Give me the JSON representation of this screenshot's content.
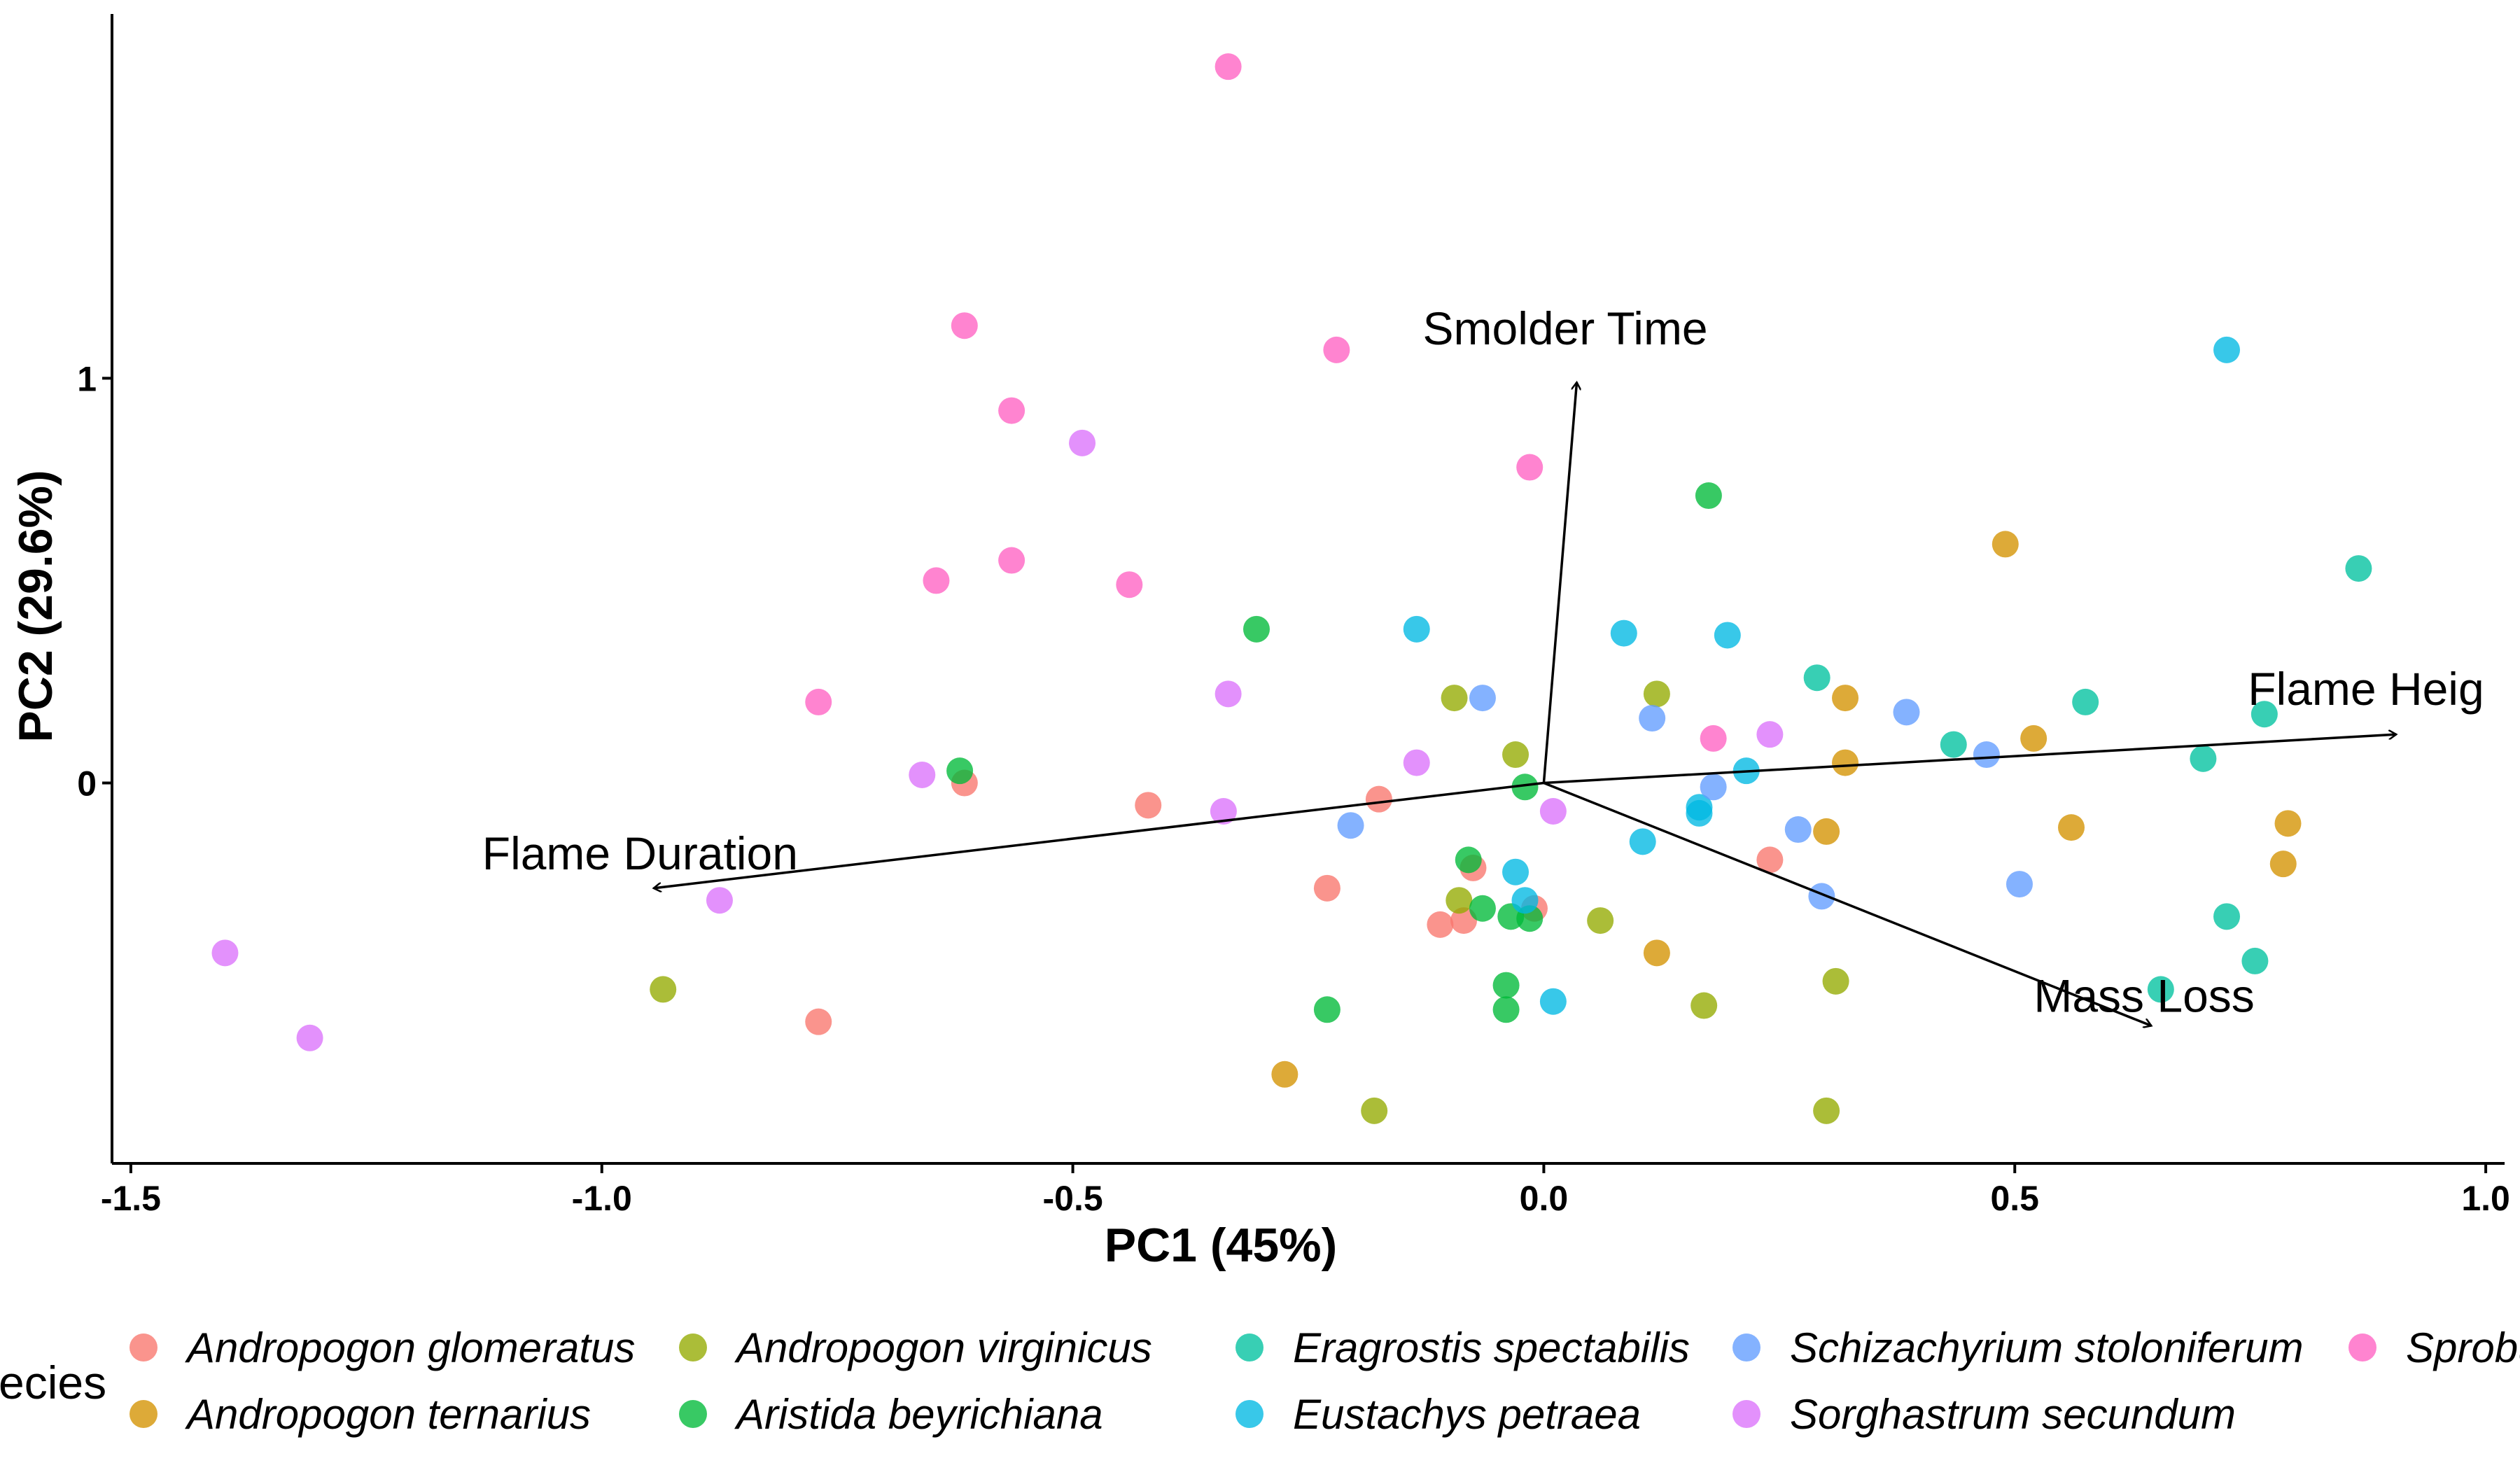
{
  "chart_data": {
    "type": "scatter",
    "title": "",
    "xlabel": "PC1 (45%)",
    "ylabel": "PC2 (29.6%)",
    "xlim": [
      -1.52,
      1.02
    ],
    "ylim": [
      -0.94,
      1.9
    ],
    "x_ticks": [
      "-1.5",
      "-1.0",
      "-0.5",
      "0.0",
      "0.5",
      "1.0"
    ],
    "x_tick_values": [
      -1.5,
      -1.0,
      -0.5,
      0.0,
      0.5,
      1.0
    ],
    "y_ticks": [
      "0",
      "1"
    ],
    "y_tick_values": [
      0,
      1
    ],
    "grid": false,
    "legend": {
      "title": "ecies",
      "placement": "bottom"
    },
    "loadings": [
      {
        "label": "Smolder Time",
        "x": 0.035,
        "y": 0.99
      },
      {
        "label": "Flame Heig",
        "x": 0.905,
        "y": 0.12
      },
      {
        "label": "Flame Duration",
        "x": -0.945,
        "y": -0.26
      },
      {
        "label": "Mass Loss",
        "x": 0.645,
        "y": -0.6
      }
    ],
    "series": [
      {
        "name": "Andropogon glomeratus",
        "color": "#F8766D",
        "points": [
          [
            -0.615,
            0.0
          ],
          [
            -0.42,
            -0.055
          ],
          [
            -0.175,
            -0.04
          ],
          [
            -0.23,
            -0.26
          ],
          [
            -0.11,
            -0.35
          ],
          [
            -0.085,
            -0.34
          ],
          [
            -0.075,
            -0.21
          ],
          [
            -0.01,
            -0.31
          ],
          [
            0.24,
            -0.19
          ],
          [
            -0.77,
            -0.59
          ]
        ]
      },
      {
        "name": "Andropogon ternarius",
        "color": "#D39200",
        "points": [
          [
            0.49,
            0.59
          ],
          [
            0.32,
            0.21
          ],
          [
            0.52,
            0.11
          ],
          [
            0.32,
            0.05
          ],
          [
            0.3,
            -0.12
          ],
          [
            0.56,
            -0.11
          ],
          [
            0.79,
            -0.1
          ],
          [
            0.785,
            -0.2
          ],
          [
            0.12,
            -0.42
          ],
          [
            -0.275,
            -0.72
          ]
        ]
      },
      {
        "name": "Andropogon virginicus",
        "color": "#93AA00",
        "points": [
          [
            -0.095,
            0.21
          ],
          [
            0.12,
            0.22
          ],
          [
            -0.03,
            0.07
          ],
          [
            -0.09,
            -0.29
          ],
          [
            0.06,
            -0.34
          ],
          [
            0.31,
            -0.49
          ],
          [
            0.17,
            -0.55
          ],
          [
            -0.18,
            -0.81
          ],
          [
            0.3,
            -0.81
          ],
          [
            -0.935,
            -0.51
          ]
        ]
      },
      {
        "name": "Aristida beyrichiana",
        "color": "#00BA38",
        "points": [
          [
            0.175,
            0.71
          ],
          [
            -0.305,
            0.38
          ],
          [
            -0.62,
            0.03
          ],
          [
            -0.02,
            -0.01
          ],
          [
            -0.08,
            -0.19
          ],
          [
            -0.065,
            -0.31
          ],
          [
            -0.035,
            -0.33
          ],
          [
            -0.015,
            -0.335
          ],
          [
            -0.04,
            -0.5
          ],
          [
            -0.04,
            -0.56
          ],
          [
            -0.23,
            -0.56
          ]
        ]
      },
      {
        "name": "Eragrostis spectabilis",
        "color": "#00C19F",
        "points": [
          [
            0.865,
            0.53
          ],
          [
            0.29,
            0.26
          ],
          [
            0.575,
            0.2
          ],
          [
            0.765,
            0.17
          ],
          [
            0.435,
            0.095
          ],
          [
            0.7,
            0.06
          ],
          [
            0.725,
            -0.33
          ],
          [
            0.755,
            -0.44
          ],
          [
            0.655,
            -0.51
          ]
        ]
      },
      {
        "name": "Eustachys petraea",
        "color": "#00B9E3",
        "points": [
          [
            0.725,
            1.07
          ],
          [
            -0.135,
            0.38
          ],
          [
            0.085,
            0.37
          ],
          [
            0.195,
            0.365
          ],
          [
            0.215,
            0.03
          ],
          [
            0.165,
            -0.06
          ],
          [
            0.165,
            -0.075
          ],
          [
            0.105,
            -0.145
          ],
          [
            -0.03,
            -0.22
          ],
          [
            -0.02,
            -0.29
          ],
          [
            0.01,
            -0.54
          ]
        ]
      },
      {
        "name": "Schizachyrium stoloniferum",
        "color": "#619CFF",
        "points": [
          [
            -0.065,
            0.21
          ],
          [
            0.115,
            0.16
          ],
          [
            0.385,
            0.175
          ],
          [
            0.47,
            0.07
          ],
          [
            0.18,
            -0.01
          ],
          [
            -0.205,
            -0.105
          ],
          [
            0.27,
            -0.115
          ],
          [
            0.295,
            -0.28
          ],
          [
            0.505,
            -0.25
          ]
        ]
      },
      {
        "name": "Sorghastrum secundum",
        "color": "#DB72FB",
        "points": [
          [
            -0.49,
            0.84
          ],
          [
            -0.335,
            0.22
          ],
          [
            0.24,
            0.12
          ],
          [
            -0.135,
            0.05
          ],
          [
            -0.66,
            0.02
          ],
          [
            -0.34,
            -0.07
          ],
          [
            0.01,
            -0.07
          ],
          [
            -0.875,
            -0.29
          ],
          [
            -1.4,
            -0.42
          ],
          [
            -1.31,
            -0.63
          ]
        ]
      },
      {
        "name": "Sprobul",
        "color": "#FF61C3",
        "points": [
          [
            -0.335,
            1.77
          ],
          [
            -0.615,
            1.13
          ],
          [
            -0.22,
            1.07
          ],
          [
            -0.565,
            0.92
          ],
          [
            -0.015,
            0.78
          ],
          [
            -0.565,
            0.55
          ],
          [
            -0.645,
            0.5
          ],
          [
            -0.44,
            0.49
          ],
          [
            -0.77,
            0.2
          ],
          [
            0.18,
            0.11
          ]
        ]
      }
    ]
  }
}
